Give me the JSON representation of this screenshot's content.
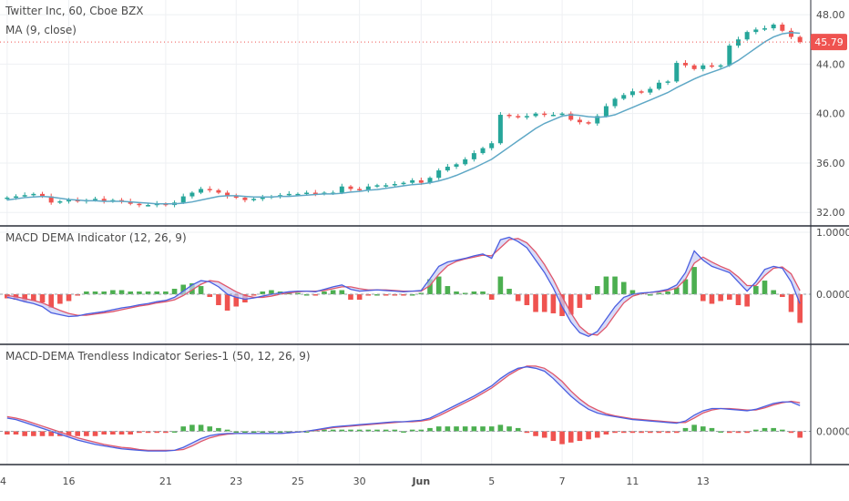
{
  "chart_data": [
    {
      "type": "candlestick",
      "title": "Twitter Inc, 60, Cboe BZX",
      "overlay_label": "MA (9, close)",
      "last_price": "45.79",
      "ylim": [
        31.5,
        48.6
      ],
      "yticks": [
        "32.00",
        "36.00",
        "40.00",
        "44.00",
        "48.00"
      ],
      "ytick_values": [
        32,
        36,
        40,
        44,
        48
      ],
      "colors": {
        "up": "#26a69a",
        "down": "#ef5350",
        "ma": "#5fa8c6",
        "price_badge": "#ef5350"
      },
      "close": [
        33.2,
        33.3,
        33.4,
        33.5,
        33.3,
        32.8,
        32.9,
        33.0,
        32.9,
        33.0,
        33.1,
        32.9,
        33.0,
        32.9,
        32.7,
        32.6,
        32.6,
        32.7,
        32.6,
        32.8,
        33.3,
        33.6,
        33.9,
        33.8,
        33.6,
        33.3,
        33.2,
        33.0,
        33.1,
        33.2,
        33.3,
        33.4,
        33.5,
        33.5,
        33.6,
        33.5,
        33.6,
        33.6,
        34.1,
        33.9,
        33.8,
        34.1,
        34.2,
        34.2,
        34.3,
        34.4,
        34.6,
        34.4,
        34.8,
        35.4,
        35.7,
        35.9,
        36.3,
        36.8,
        37.2,
        37.6,
        39.9,
        39.8,
        39.7,
        39.8,
        40.0,
        39.9,
        39.9,
        40.0,
        39.5,
        39.3,
        39.2,
        39.8,
        40.6,
        41.2,
        41.5,
        41.8,
        41.7,
        42.0,
        42.5,
        42.6,
        44.1,
        43.9,
        43.6,
        43.9,
        43.8,
        43.9,
        45.5,
        46.0,
        46.6,
        46.8,
        46.9,
        47.2,
        46.7,
        46.2,
        45.79
      ],
      "ma": [
        33.0,
        33.1,
        33.2,
        33.25,
        33.3,
        33.25,
        33.15,
        33.05,
        33.0,
        32.95,
        32.95,
        32.9,
        32.9,
        32.9,
        32.85,
        32.8,
        32.75,
        32.7,
        32.7,
        32.7,
        32.75,
        32.85,
        33.0,
        33.15,
        33.3,
        33.35,
        33.35,
        33.3,
        33.25,
        33.25,
        33.25,
        33.3,
        33.3,
        33.35,
        33.4,
        33.45,
        33.5,
        33.5,
        33.55,
        33.65,
        33.7,
        33.8,
        33.85,
        33.95,
        34.05,
        34.15,
        34.25,
        34.3,
        34.4,
        34.55,
        34.75,
        35.0,
        35.3,
        35.6,
        35.95,
        36.3,
        36.8,
        37.3,
        37.8,
        38.3,
        38.8,
        39.2,
        39.5,
        39.8,
        39.9,
        39.85,
        39.75,
        39.7,
        39.75,
        39.9,
        40.2,
        40.5,
        40.8,
        41.1,
        41.4,
        41.7,
        42.1,
        42.45,
        42.8,
        43.1,
        43.35,
        43.6,
        43.9,
        44.3,
        44.8,
        45.3,
        45.8,
        46.2,
        46.45,
        46.55,
        46.5
      ],
      "pan_highlight": {
        "date_label": "16",
        "x": 16
      }
    },
    {
      "type": "line",
      "title": "MACD DEMA Indicator (12, 26, 9)",
      "ylim": [
        -0.72,
        1.0
      ],
      "yticks": [
        "1.0000",
        "0.0000"
      ],
      "ytick_values": [
        1.0,
        0.0
      ],
      "colors": {
        "macd": "#4a5ee0",
        "signal": "#e0566a",
        "fill": "#c7cdf5",
        "hist_up": "#4caf50",
        "hist_down": "#ef5350"
      },
      "macd": [
        -0.05,
        -0.08,
        -0.12,
        -0.15,
        -0.2,
        -0.3,
        -0.33,
        -0.36,
        -0.35,
        -0.32,
        -0.3,
        -0.28,
        -0.25,
        -0.22,
        -0.2,
        -0.17,
        -0.15,
        -0.12,
        -0.1,
        -0.05,
        0.05,
        0.15,
        0.22,
        0.2,
        0.12,
        0.0,
        -0.05,
        -0.08,
        -0.06,
        -0.03,
        0.0,
        0.02,
        0.04,
        0.05,
        0.05,
        0.04,
        0.08,
        0.12,
        0.15,
        0.08,
        0.05,
        0.06,
        0.07,
        0.06,
        0.05,
        0.04,
        0.05,
        0.06,
        0.25,
        0.45,
        0.52,
        0.55,
        0.58,
        0.62,
        0.65,
        0.58,
        0.88,
        0.92,
        0.85,
        0.75,
        0.55,
        0.35,
        0.1,
        -0.2,
        -0.45,
        -0.62,
        -0.68,
        -0.6,
        -0.4,
        -0.2,
        -0.05,
        0.0,
        0.02,
        0.03,
        0.05,
        0.08,
        0.15,
        0.35,
        0.7,
        0.55,
        0.45,
        0.4,
        0.35,
        0.2,
        0.05,
        0.2,
        0.4,
        0.45,
        0.42,
        0.2,
        -0.15
      ],
      "signal": [
        -0.02,
        -0.04,
        -0.07,
        -0.1,
        -0.14,
        -0.2,
        -0.26,
        -0.31,
        -0.34,
        -0.34,
        -0.32,
        -0.3,
        -0.28,
        -0.25,
        -0.22,
        -0.19,
        -0.17,
        -0.14,
        -0.12,
        -0.09,
        -0.02,
        0.07,
        0.16,
        0.22,
        0.2,
        0.12,
        0.04,
        -0.02,
        -0.05,
        -0.05,
        -0.03,
        0.0,
        0.02,
        0.04,
        0.05,
        0.05,
        0.06,
        0.09,
        0.12,
        0.12,
        0.09,
        0.07,
        0.07,
        0.07,
        0.06,
        0.05,
        0.05,
        0.05,
        0.14,
        0.32,
        0.46,
        0.53,
        0.57,
        0.6,
        0.63,
        0.62,
        0.75,
        0.88,
        0.9,
        0.83,
        0.68,
        0.48,
        0.24,
        -0.04,
        -0.3,
        -0.52,
        -0.64,
        -0.66,
        -0.53,
        -0.33,
        -0.14,
        -0.03,
        0.01,
        0.03,
        0.04,
        0.06,
        0.1,
        0.24,
        0.5,
        0.6,
        0.52,
        0.45,
        0.39,
        0.28,
        0.14,
        0.14,
        0.3,
        0.42,
        0.44,
        0.33,
        0.06
      ],
      "pan_highlight": null
    },
    {
      "type": "line",
      "title": "MACD-DEMA Trendless Indicator Series-1 (50, 12, 26, 9)",
      "ylim": [
        -0.38,
        1.1
      ],
      "yticks": [
        "0.0000"
      ],
      "ytick_values": [
        0.0
      ],
      "colors": {
        "macd": "#4a5ee0",
        "signal": "#e0566a",
        "fill": "#c7cdf5",
        "hist_up": "#4caf50",
        "hist_down": "#ef5350"
      },
      "macd": [
        0.18,
        0.16,
        0.12,
        0.08,
        0.04,
        0.0,
        -0.04,
        -0.08,
        -0.12,
        -0.15,
        -0.18,
        -0.2,
        -0.22,
        -0.24,
        -0.25,
        -0.26,
        -0.27,
        -0.27,
        -0.27,
        -0.26,
        -0.22,
        -0.16,
        -0.1,
        -0.06,
        -0.04,
        -0.03,
        -0.03,
        -0.03,
        -0.03,
        -0.03,
        -0.03,
        -0.03,
        -0.02,
        -0.01,
        0.0,
        0.02,
        0.04,
        0.06,
        0.07,
        0.08,
        0.09,
        0.1,
        0.11,
        0.12,
        0.13,
        0.13,
        0.14,
        0.15,
        0.18,
        0.24,
        0.3,
        0.36,
        0.42,
        0.48,
        0.55,
        0.62,
        0.72,
        0.8,
        0.86,
        0.88,
        0.86,
        0.82,
        0.72,
        0.6,
        0.48,
        0.38,
        0.3,
        0.25,
        0.22,
        0.2,
        0.18,
        0.16,
        0.15,
        0.14,
        0.13,
        0.12,
        0.11,
        0.14,
        0.22,
        0.28,
        0.31,
        0.31,
        0.3,
        0.29,
        0.28,
        0.3,
        0.34,
        0.38,
        0.4,
        0.4,
        0.35
      ],
      "signal": [
        0.2,
        0.18,
        0.15,
        0.11,
        0.07,
        0.03,
        -0.01,
        -0.05,
        -0.09,
        -0.12,
        -0.15,
        -0.18,
        -0.2,
        -0.22,
        -0.23,
        -0.25,
        -0.26,
        -0.26,
        -0.26,
        -0.26,
        -0.25,
        -0.2,
        -0.14,
        -0.09,
        -0.06,
        -0.04,
        -0.03,
        -0.03,
        -0.03,
        -0.03,
        -0.03,
        -0.03,
        -0.02,
        -0.01,
        0.0,
        0.01,
        0.03,
        0.05,
        0.06,
        0.07,
        0.08,
        0.09,
        0.1,
        0.11,
        0.12,
        0.13,
        0.13,
        0.14,
        0.16,
        0.21,
        0.27,
        0.33,
        0.39,
        0.45,
        0.52,
        0.59,
        0.68,
        0.77,
        0.84,
        0.89,
        0.89,
        0.86,
        0.78,
        0.68,
        0.55,
        0.44,
        0.35,
        0.29,
        0.24,
        0.21,
        0.19,
        0.17,
        0.16,
        0.15,
        0.14,
        0.13,
        0.12,
        0.12,
        0.18,
        0.25,
        0.29,
        0.31,
        0.31,
        0.3,
        0.29,
        0.29,
        0.32,
        0.36,
        0.39,
        0.41,
        0.39
      ],
      "pan_highlight": null
    }
  ],
  "x_axis": {
    "ticks": [
      {
        "label": "4",
        "i": 0
      },
      {
        "label": "16",
        "i": 7
      },
      {
        "label": "21",
        "i": 18
      },
      {
        "label": "23",
        "i": 26
      },
      {
        "label": "25",
        "i": 33
      },
      {
        "label": "30",
        "i": 40
      },
      {
        "label": "Jun",
        "i": 47,
        "bold": true
      },
      {
        "label": "5",
        "i": 55
      },
      {
        "label": "7",
        "i": 63
      },
      {
        "label": "11",
        "i": 71
      },
      {
        "label": "13",
        "i": 79
      }
    ]
  }
}
